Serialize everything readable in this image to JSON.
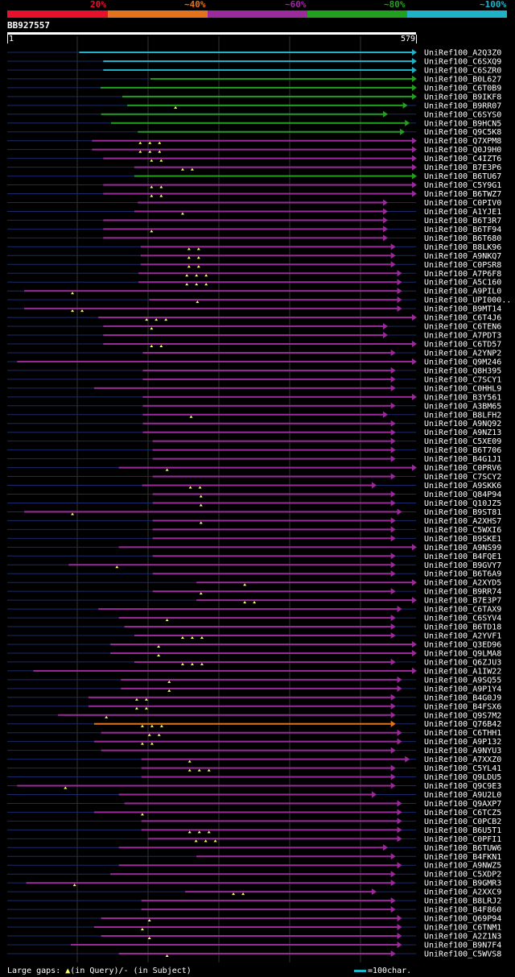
{
  "legend": [
    {
      "label": "20%",
      "color": "#e8112d"
    },
    {
      "label": "~40%",
      "color": "#e5731e"
    },
    {
      "label": "~60%",
      "color": "#9b2a9c"
    },
    {
      "label": "~80%",
      "color": "#22a01f"
    },
    {
      "label": "~100%",
      "color": "#20b2c8"
    }
  ],
  "query": {
    "id": "BB927557",
    "start": "1",
    "end": "579",
    "length": 579
  },
  "hits": [
    {
      "name": "UniRef100_A2Q3Z0",
      "s": 102,
      "e": 579,
      "c": "#20b2c8",
      "ta": 0
    },
    {
      "name": "UniRef100_C6SXQ9",
      "s": 136,
      "e": 579,
      "c": "#20b2c8",
      "ta": 0
    },
    {
      "name": "UniRef100_C6SZR0",
      "s": 136,
      "e": 579,
      "c": "#20b2c8",
      "ta": 0
    },
    {
      "name": "UniRef100_B0L627",
      "s": 203,
      "e": 579,
      "c": "#22a01f",
      "ta": 0
    },
    {
      "name": "UniRef100_C6T0B9",
      "s": 132,
      "e": 579,
      "c": "#22a01f",
      "ta": 0
    },
    {
      "name": "UniRef100_B9IKF8",
      "s": 163,
      "e": 579,
      "c": "#22a01f",
      "ta": 0
    },
    {
      "name": "UniRef100_B9RR07",
      "s": 170,
      "e": 566,
      "c": "#22a01f",
      "ta": 1
    },
    {
      "name": "UniRef100_C6SYS0",
      "s": 133,
      "e": 538,
      "c": "#22a01f",
      "ta": 0
    },
    {
      "name": "UniRef100_B9HCN5",
      "s": 147,
      "e": 569,
      "c": "#22a01f",
      "ta": 0
    },
    {
      "name": "UniRef100_Q9C5K8",
      "s": 185,
      "e": 562,
      "c": "#22a01f",
      "ta": 0
    },
    {
      "name": "UniRef100_Q7XPM8",
      "s": 120,
      "e": 579,
      "c": "#9b2a9c",
      "ta": 3
    },
    {
      "name": "UniRef100_Q0J9H0",
      "s": 120,
      "e": 579,
      "c": "#9b2a9c",
      "ta": 3
    },
    {
      "name": "UniRef100_C4IZT6",
      "s": 136,
      "e": 579,
      "c": "#9b2a9c",
      "ta": 2
    },
    {
      "name": "UniRef100_B7E3P6",
      "s": 180,
      "e": 579,
      "c": "#9b2a9c",
      "ta": 2
    },
    {
      "name": "UniRef100_B6TU67",
      "s": 180,
      "e": 579,
      "c": "#22a01f",
      "ta": 0
    },
    {
      "name": "UniRef100_C5Y9G1",
      "s": 136,
      "e": 579,
      "c": "#9b2a9c",
      "ta": 2
    },
    {
      "name": "UniRef100_B6TWZ7",
      "s": 136,
      "e": 579,
      "c": "#9b2a9c",
      "ta": 2
    },
    {
      "name": "UniRef100_C0PIV0",
      "s": 185,
      "e": 538,
      "c": "#9b2a9c",
      "ta": 0
    },
    {
      "name": "UniRef100_A1YJE1",
      "s": 180,
      "e": 538,
      "c": "#9b2a9c",
      "ta": 1
    },
    {
      "name": "UniRef100_B6T3R7",
      "s": 136,
      "e": 538,
      "c": "#9b2a9c",
      "ta": 0
    },
    {
      "name": "UniRef100_B6TF94",
      "s": 136,
      "e": 538,
      "c": "#9b2a9c",
      "ta": 1
    },
    {
      "name": "UniRef100_B6T680",
      "s": 136,
      "e": 538,
      "c": "#9b2a9c",
      "ta": 0
    },
    {
      "name": "UniRef100_B8LK96",
      "s": 189,
      "e": 549,
      "c": "#9b2a9c",
      "ta": 2
    },
    {
      "name": "UniRef100_A9NKQ7",
      "s": 189,
      "e": 549,
      "c": "#9b2a9c",
      "ta": 2
    },
    {
      "name": "UniRef100_C0PSR8",
      "s": 189,
      "e": 549,
      "c": "#9b2a9c",
      "ta": 2
    },
    {
      "name": "UniRef100_A7P6F8",
      "s": 186,
      "e": 558,
      "c": "#9b2a9c",
      "ta": 3
    },
    {
      "name": "UniRef100_A5C160",
      "s": 186,
      "e": 558,
      "c": "#9b2a9c",
      "ta": 3
    },
    {
      "name": "UniRef100_A9PIL0",
      "s": 24,
      "e": 558,
      "c": "#9b2a9c",
      "ta": 1
    },
    {
      "name": "UniRef100_UPI000..",
      "s": 201,
      "e": 558,
      "c": "#9b2a9c",
      "ta": 1
    },
    {
      "name": "UniRef100_B9MT14",
      "s": 24,
      "e": 558,
      "c": "#9b2a9c",
      "ta": 2
    },
    {
      "name": "UniRef100_C6T4J6",
      "s": 129,
      "e": 579,
      "c": "#9b2a9c",
      "ta": 3
    },
    {
      "name": "UniRef100_C6TEN6",
      "s": 136,
      "e": 538,
      "c": "#9b2a9c",
      "ta": 1
    },
    {
      "name": "UniRef100_A7PDT3",
      "s": 136,
      "e": 538,
      "c": "#9b2a9c",
      "ta": 0
    },
    {
      "name": "UniRef100_C6TD57",
      "s": 136,
      "e": 579,
      "c": "#9b2a9c",
      "ta": 2
    },
    {
      "name": "UniRef100_A2YNP2",
      "s": 192,
      "e": 549,
      "c": "#9b2a9c",
      "ta": 0
    },
    {
      "name": "UniRef100_Q9M246",
      "s": 14,
      "e": 579,
      "c": "#9b2a9c",
      "ta": 0
    },
    {
      "name": "UniRef100_Q8H395",
      "s": 192,
      "e": 549,
      "c": "#9b2a9c",
      "ta": 0
    },
    {
      "name": "UniRef100_C7SCY1",
      "s": 192,
      "e": 549,
      "c": "#9b2a9c",
      "ta": 0
    },
    {
      "name": "UniRef100_C0HHL9",
      "s": 123,
      "e": 549,
      "c": "#9b2a9c",
      "ta": 0
    },
    {
      "name": "UniRef100_B3Y561",
      "s": 192,
      "e": 579,
      "c": "#9b2a9c",
      "ta": 0
    },
    {
      "name": "UniRef100_A3BM65",
      "s": 192,
      "e": 549,
      "c": "#9b2a9c",
      "ta": 0
    },
    {
      "name": "UniRef100_B8LFH2",
      "s": 192,
      "e": 538,
      "c": "#9b2a9c",
      "ta": 1
    },
    {
      "name": "UniRef100_A9NQ92",
      "s": 192,
      "e": 549,
      "c": "#9b2a9c",
      "ta": 0
    },
    {
      "name": "UniRef100_A9NZ13",
      "s": 192,
      "e": 549,
      "c": "#9b2a9c",
      "ta": 0
    },
    {
      "name": "UniRef100_C5XE09",
      "s": 206,
      "e": 549,
      "c": "#9b2a9c",
      "ta": 0
    },
    {
      "name": "UniRef100_B6T706",
      "s": 206,
      "e": 549,
      "c": "#9b2a9c",
      "ta": 0
    },
    {
      "name": "UniRef100_B4G1J1",
      "s": 206,
      "e": 549,
      "c": "#9b2a9c",
      "ta": 0
    },
    {
      "name": "UniRef100_C0PRV6",
      "s": 158,
      "e": 579,
      "c": "#9b2a9c",
      "ta": 1
    },
    {
      "name": "UniRef100_C7SCY2",
      "s": 206,
      "e": 549,
      "c": "#9b2a9c",
      "ta": 0
    },
    {
      "name": "UniRef100_A9SKK6",
      "s": 191,
      "e": 522,
      "c": "#9b2a9c",
      "ta": 2
    },
    {
      "name": "UniRef100_Q84P94",
      "s": 206,
      "e": 549,
      "c": "#9b2a9c",
      "ta": 1
    },
    {
      "name": "UniRef100_Q10JZ5",
      "s": 206,
      "e": 549,
      "c": "#9b2a9c",
      "ta": 1
    },
    {
      "name": "UniRef100_B9ST81",
      "s": 24,
      "e": 558,
      "c": "#9b2a9c",
      "ta": 1
    },
    {
      "name": "UniRef100_A2XHS7",
      "s": 206,
      "e": 549,
      "c": "#9b2a9c",
      "ta": 1
    },
    {
      "name": "UniRef100_C5WXI6",
      "s": 206,
      "e": 549,
      "c": "#9b2a9c",
      "ta": 0
    },
    {
      "name": "UniRef100_B9SKE1",
      "s": 206,
      "e": 549,
      "c": "#9b2a9c",
      "ta": 0
    },
    {
      "name": "UniRef100_A9NS99",
      "s": 158,
      "e": 579,
      "c": "#9b2a9c",
      "ta": 0
    },
    {
      "name": "UniRef100_B4FQE1",
      "s": 206,
      "e": 549,
      "c": "#9b2a9c",
      "ta": 0
    },
    {
      "name": "UniRef100_B9GVY7",
      "s": 87,
      "e": 549,
      "c": "#9b2a9c",
      "ta": 1
    },
    {
      "name": "UniRef100_B6T6A9",
      "s": 206,
      "e": 549,
      "c": "#9b2a9c",
      "ta": 0
    },
    {
      "name": "UniRef100_A2XYD5",
      "s": 268,
      "e": 579,
      "c": "#9b2a9c",
      "ta": 1
    },
    {
      "name": "UniRef100_B9RR74",
      "s": 206,
      "e": 549,
      "c": "#9b2a9c",
      "ta": 1
    },
    {
      "name": "UniRef100_B7E3P7",
      "s": 268,
      "e": 579,
      "c": "#9b2a9c",
      "ta": 2
    },
    {
      "name": "UniRef100_C6TAX9",
      "s": 129,
      "e": 558,
      "c": "#9b2a9c",
      "ta": 0
    },
    {
      "name": "UniRef100_C6SYV4",
      "s": 158,
      "e": 549,
      "c": "#9b2a9c",
      "ta": 1
    },
    {
      "name": "UniRef100_B6TD18",
      "s": 166,
      "e": 549,
      "c": "#9b2a9c",
      "ta": 0
    },
    {
      "name": "UniRef100_A2YVF1",
      "s": 180,
      "e": 549,
      "c": "#9b2a9c",
      "ta": 3
    },
    {
      "name": "UniRef100_Q3ED96",
      "s": 146,
      "e": 579,
      "c": "#9b2a9c",
      "ta": 1
    },
    {
      "name": "UniRef100_Q9LMA8",
      "s": 146,
      "e": 579,
      "c": "#9b2a9c",
      "ta": 1
    },
    {
      "name": "UniRef100_Q6ZJU3",
      "s": 180,
      "e": 549,
      "c": "#9b2a9c",
      "ta": 3
    },
    {
      "name": "UniRef100_A1IW22",
      "s": 37,
      "e": 579,
      "c": "#9b2a9c",
      "ta": 0
    },
    {
      "name": "UniRef100_A9SQ55",
      "s": 161,
      "e": 558,
      "c": "#9b2a9c",
      "ta": 1
    },
    {
      "name": "UniRef100_A9P1Y4",
      "s": 161,
      "e": 558,
      "c": "#9b2a9c",
      "ta": 1
    },
    {
      "name": "UniRef100_B4G0J9",
      "s": 115,
      "e": 549,
      "c": "#9b2a9c",
      "ta": 2
    },
    {
      "name": "UniRef100_B4FSX6",
      "s": 115,
      "e": 549,
      "c": "#9b2a9c",
      "ta": 2
    },
    {
      "name": "UniRef100_Q9S7M2",
      "s": 72,
      "e": 549,
      "c": "#9b2a9c",
      "ta": 1
    },
    {
      "name": "UniRef100_Q76B42",
      "s": 123,
      "e": 549,
      "c": "#e5731e",
      "ta": 3
    },
    {
      "name": "UniRef100_C6THH1",
      "s": 133,
      "e": 558,
      "c": "#9b2a9c",
      "ta": 2
    },
    {
      "name": "UniRef100_A9P132",
      "s": 123,
      "e": 558,
      "c": "#9b2a9c",
      "ta": 2
    },
    {
      "name": "UniRef100_A9NYU3",
      "s": 133,
      "e": 549,
      "c": "#9b2a9c",
      "ta": 0
    },
    {
      "name": "UniRef100_A7XXZ0",
      "s": 190,
      "e": 569,
      "c": "#9b2a9c",
      "ta": 1
    },
    {
      "name": "UniRef100_C5YL41",
      "s": 190,
      "e": 549,
      "c": "#9b2a9c",
      "ta": 3
    },
    {
      "name": "UniRef100_Q9LDU5",
      "s": 190,
      "e": 549,
      "c": "#9b2a9c",
      "ta": 0
    },
    {
      "name": "UniRef100_Q9C9E3",
      "s": 14,
      "e": 549,
      "c": "#9b2a9c",
      "ta": 1
    },
    {
      "name": "UniRef100_A9U2L0",
      "s": 158,
      "e": 522,
      "c": "#9b2a9c",
      "ta": 0
    },
    {
      "name": "UniRef100_Q9AXP7",
      "s": 166,
      "e": 558,
      "c": "#9b2a9c",
      "ta": 0
    },
    {
      "name": "UniRef100_C6TCZ5",
      "s": 123,
      "e": 558,
      "c": "#9b2a9c",
      "ta": 1
    },
    {
      "name": "UniRef100_C0PCB2",
      "s": 190,
      "e": 558,
      "c": "#9b2a9c",
      "ta": 0
    },
    {
      "name": "UniRef100_B6U5T1",
      "s": 190,
      "e": 558,
      "c": "#9b2a9c",
      "ta": 3
    },
    {
      "name": "UniRef100_C0PFI1",
      "s": 199,
      "e": 558,
      "c": "#9b2a9c",
      "ta": 3
    },
    {
      "name": "UniRef100_B6TUW6",
      "s": 158,
      "e": 538,
      "c": "#9b2a9c",
      "ta": 0
    },
    {
      "name": "UniRef100_B4FKN1",
      "s": 268,
      "e": 549,
      "c": "#9b2a9c",
      "ta": 0
    },
    {
      "name": "UniRef100_A9NWZ5",
      "s": 158,
      "e": 558,
      "c": "#9b2a9c",
      "ta": 0
    },
    {
      "name": "UniRef100_C5XDP2",
      "s": 146,
      "e": 549,
      "c": "#9b2a9c",
      "ta": 0
    },
    {
      "name": "UniRef100_B9GMR3",
      "s": 27,
      "e": 549,
      "c": "#9b2a9c",
      "ta": 1
    },
    {
      "name": "UniRef100_A2XXC9",
      "s": 252,
      "e": 522,
      "c": "#9b2a9c",
      "ta": 2
    },
    {
      "name": "UniRef100_B8LRJ2",
      "s": 190,
      "e": 549,
      "c": "#9b2a9c",
      "ta": 0
    },
    {
      "name": "UniRef100_B4F860",
      "s": 190,
      "e": 549,
      "c": "#9b2a9c",
      "ta": 0
    },
    {
      "name": "UniRef100_Q69P94",
      "s": 133,
      "e": 558,
      "c": "#9b2a9c",
      "ta": 1
    },
    {
      "name": "UniRef100_C6TNM1",
      "s": 123,
      "e": 558,
      "c": "#9b2a9c",
      "ta": 1
    },
    {
      "name": "UniRef100_A2Z1N3",
      "s": 133,
      "e": 558,
      "c": "#9b2a9c",
      "ta": 1
    },
    {
      "name": "UniRef100_B9N7F4",
      "s": 90,
      "e": 558,
      "c": "#9b2a9c",
      "ta": 0
    },
    {
      "name": "UniRef100_C5WVS8",
      "s": 158,
      "e": 549,
      "c": "#9b2a9c",
      "ta": 1
    }
  ],
  "footer": {
    "gaps_label": "Large gaps: ",
    "query_label": "(in Query)/- (in Subject)",
    "scale_label": "=100char."
  }
}
